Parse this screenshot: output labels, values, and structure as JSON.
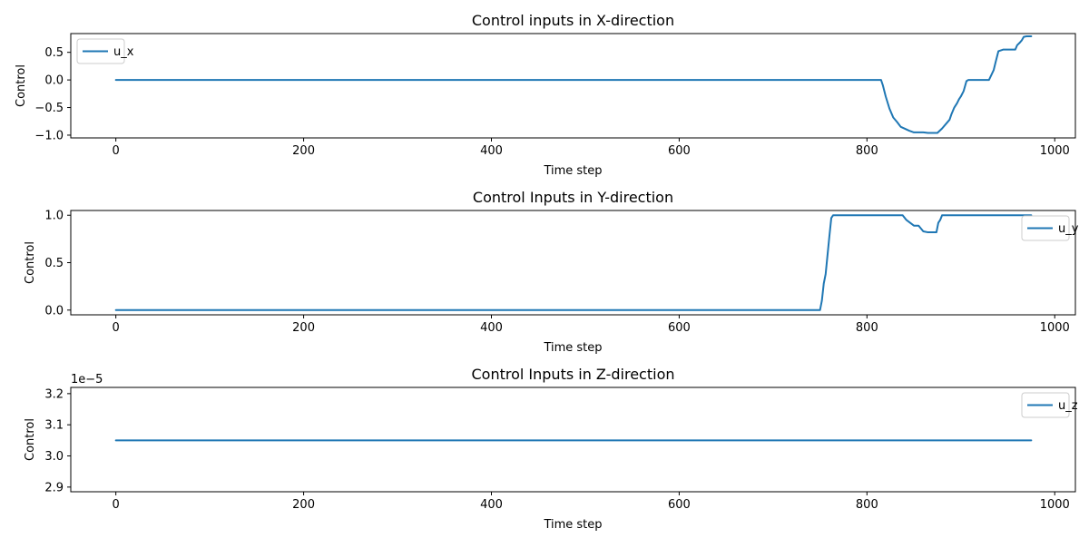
{
  "colors": {
    "series": "#1f77b4"
  },
  "chart_data": [
    {
      "type": "line",
      "title": "Control inputs in X-direction",
      "xlabel": "Time step",
      "ylabel": "Control",
      "xlim": [
        -48,
        1022
      ],
      "ylim": [
        -1.05,
        0.84
      ],
      "xticks": [
        0,
        200,
        400,
        600,
        800,
        1000
      ],
      "xtick_labels": [
        "0",
        "200",
        "400",
        "600",
        "800",
        "1000"
      ],
      "yticks": [
        -1.0,
        -0.5,
        0.0,
        0.5
      ],
      "ytick_labels": [
        "−1.0",
        "−0.5",
        "0.0",
        "0.5"
      ],
      "legend_position": "top-left",
      "offset_text": "",
      "series": [
        {
          "name": "u_x",
          "x": [
            0,
            815,
            817,
            820,
            824,
            828,
            832,
            836,
            840,
            845,
            850,
            855,
            860,
            865,
            870,
            875,
            880,
            885,
            888,
            890,
            893,
            896,
            898,
            900,
            903,
            906,
            908,
            912,
            915,
            918,
            920,
            925,
            930,
            935,
            937,
            940,
            945,
            950,
            955,
            958,
            960,
            963,
            965,
            967,
            970,
            975
          ],
          "y": [
            0.0,
            0.0,
            -0.1,
            -0.3,
            -0.52,
            -0.68,
            -0.76,
            -0.85,
            -0.88,
            -0.92,
            -0.95,
            -0.95,
            -0.95,
            -0.96,
            -0.96,
            -0.96,
            -0.88,
            -0.78,
            -0.72,
            -0.62,
            -0.5,
            -0.42,
            -0.35,
            -0.3,
            -0.2,
            -0.02,
            0.0,
            0.0,
            0.0,
            0.0,
            0.0,
            0.0,
            0.0,
            0.18,
            0.32,
            0.52,
            0.55,
            0.55,
            0.55,
            0.55,
            0.63,
            0.68,
            0.72,
            0.78,
            0.79,
            0.79
          ]
        }
      ]
    },
    {
      "type": "line",
      "title": "Control Inputs in Y-direction",
      "xlabel": "Time step",
      "ylabel": "Control",
      "xlim": [
        -48,
        1022
      ],
      "ylim": [
        -0.05,
        1.05
      ],
      "xticks": [
        0,
        200,
        400,
        600,
        800,
        1000
      ],
      "xtick_labels": [
        "0",
        "200",
        "400",
        "600",
        "800",
        "1000"
      ],
      "yticks": [
        0.0,
        0.5,
        1.0
      ],
      "ytick_labels": [
        "0.0",
        "0.5",
        "1.0"
      ],
      "legend_position": "upper right",
      "offset_text": "",
      "series": [
        {
          "name": "u_y",
          "x": [
            0,
            750,
            752,
            754,
            756,
            758,
            760,
            762,
            764,
            766,
            770,
            800,
            838,
            842,
            846,
            850,
            855,
            860,
            865,
            870,
            874,
            876,
            878,
            880,
            885,
            900,
            975
          ],
          "y": [
            0.0,
            0.0,
            0.1,
            0.28,
            0.38,
            0.58,
            0.78,
            0.97,
            1.0,
            1.0,
            1.0,
            1.0,
            1.0,
            0.95,
            0.92,
            0.89,
            0.89,
            0.83,
            0.82,
            0.82,
            0.82,
            0.92,
            0.95,
            1.0,
            1.0,
            1.0,
            1.0
          ]
        }
      ]
    },
    {
      "type": "line",
      "title": "Control Inputs in Z-direction",
      "xlabel": "Time step",
      "ylabel": "Control",
      "xlim": [
        -48,
        1022
      ],
      "ylim": [
        2.885,
        3.22
      ],
      "xticks": [
        0,
        200,
        400,
        600,
        800,
        1000
      ],
      "xtick_labels": [
        "0",
        "200",
        "400",
        "600",
        "800",
        "1000"
      ],
      "yticks": [
        2.9,
        3.0,
        3.1,
        3.2
      ],
      "ytick_labels": [
        "2.9",
        "3.0",
        "3.1",
        "3.2"
      ],
      "legend_position": "upper right",
      "offset_text": "1e−5",
      "series": [
        {
          "name": "u_z",
          "x": [
            0,
            975
          ],
          "y": [
            3.05,
            3.05
          ]
        }
      ]
    }
  ]
}
